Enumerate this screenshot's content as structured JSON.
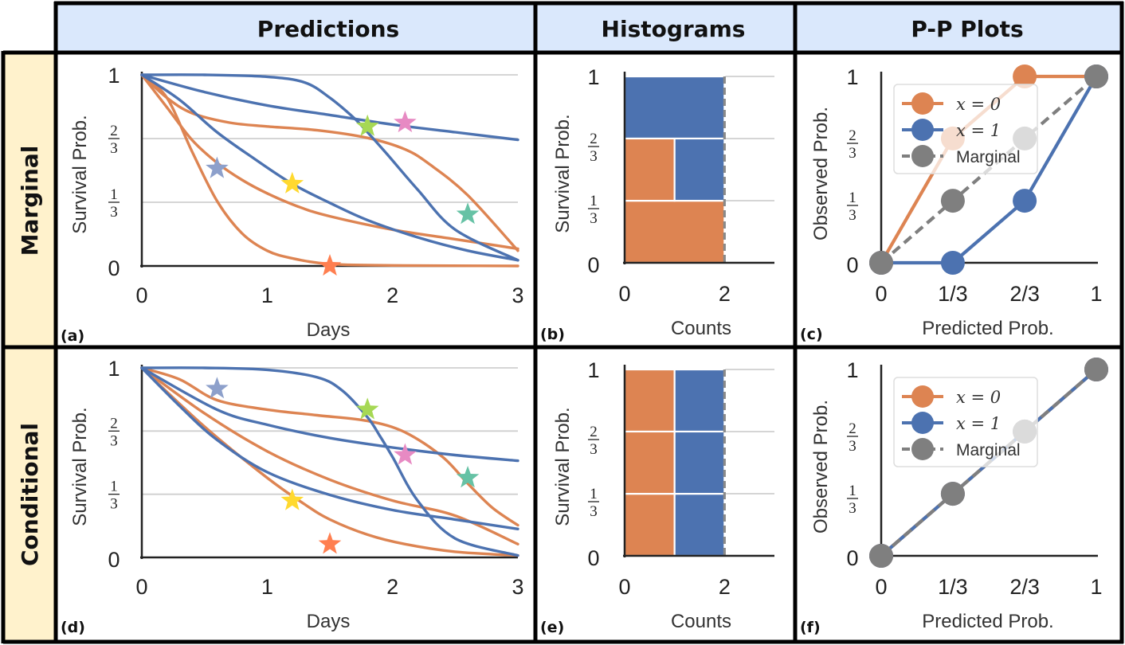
{
  "headers": {
    "predictions": "Predictions",
    "histograms": "Histograms",
    "pp": "P-P Plots"
  },
  "rows": {
    "marginal": "Marginal",
    "conditional": "Conditional"
  },
  "panel_labels": [
    "(a)",
    "(b)",
    "(c)",
    "(d)",
    "(e)",
    "(f)"
  ],
  "colors": {
    "orange": "#DD8452",
    "blue": "#4C72B0",
    "gray": "#7f7f7f",
    "header_bg": "#DAE8FC",
    "row_bg": "#FFF2CC"
  },
  "axis_text": {
    "ylabel_survival": "Survival Prob.",
    "xlabel_days": "Days",
    "xlabel_counts": "Counts",
    "ylabel_observed": "Observed Prob.",
    "xlabel_predicted": "Predicted Prob.",
    "y_one": "1",
    "y_zero": "0",
    "third_num": "1",
    "two_num": "2",
    "third_den": "3"
  },
  "legend": {
    "x0": "x = 0",
    "x1": "x = 1",
    "marginal": "Marginal"
  },
  "chart_data": [
    {
      "type": "line",
      "id": "a",
      "title": "Predictions",
      "row": "Marginal",
      "xlabel": "Days",
      "ylabel": "Survival Prob.",
      "xlim": [
        0,
        3
      ],
      "ylim": [
        0,
        1
      ],
      "x_ticks": [
        "0",
        "1",
        "2",
        "3"
      ],
      "series": [
        {
          "color": "orange",
          "x": [
            0,
            0.2,
            0.4,
            0.6,
            0.8,
            1.0,
            1.2,
            1.5,
            2.0,
            3.0
          ],
          "y": [
            1,
            0.88,
            0.6,
            0.34,
            0.17,
            0.08,
            0.04,
            0.01,
            0.003,
            0
          ]
        },
        {
          "color": "orange",
          "x": [
            0,
            0.2,
            0.4,
            0.6,
            0.8,
            1.0,
            1.25,
            1.5,
            2.0,
            2.5,
            3.0
          ],
          "y": [
            1,
            0.83,
            0.66,
            0.54,
            0.45,
            0.38,
            0.31,
            0.26,
            0.19,
            0.14,
            0.09
          ]
        },
        {
          "color": "orange",
          "x": [
            0,
            0.2,
            0.4,
            0.7,
            1.0,
            1.4,
            1.8,
            2.1,
            2.3,
            2.6,
            3.0
          ],
          "y": [
            1,
            0.88,
            0.8,
            0.75,
            0.73,
            0.71,
            0.67,
            0.61,
            0.53,
            0.37,
            0.08
          ]
        },
        {
          "color": "blue",
          "x": [
            0,
            0.3,
            0.6,
            0.9,
            1.2,
            1.5,
            1.8,
            2.2,
            2.6,
            3.0
          ],
          "y": [
            1,
            0.87,
            0.7,
            0.56,
            0.43,
            0.33,
            0.24,
            0.15,
            0.08,
            0.03
          ]
        },
        {
          "color": "blue",
          "x": [
            0,
            0.5,
            1.0,
            1.3,
            1.5,
            1.7,
            1.8,
            1.95,
            2.2,
            2.5,
            3.0
          ],
          "y": [
            1,
            1.0,
            0.99,
            0.96,
            0.88,
            0.77,
            0.7,
            0.59,
            0.4,
            0.19,
            0.03
          ]
        },
        {
          "color": "blue",
          "x": [
            0,
            0.5,
            1.0,
            1.5,
            2.0,
            2.5,
            3.0
          ],
          "y": [
            1,
            0.91,
            0.84,
            0.79,
            0.74,
            0.7,
            0.66
          ]
        }
      ],
      "stars": [
        {
          "color": "#8DA0CB",
          "x": 0.6,
          "y": 0.51
        },
        {
          "color": "#FFD92F",
          "x": 1.2,
          "y": 0.43
        },
        {
          "color": "#FF7F50",
          "x": 1.5,
          "y": 0.0
        },
        {
          "color": "#A6D854",
          "x": 1.8,
          "y": 0.73
        },
        {
          "color": "#E78AC3",
          "x": 2.1,
          "y": 0.75
        },
        {
          "color": "#66C2A5",
          "x": 2.6,
          "y": 0.27
        }
      ]
    },
    {
      "type": "bar",
      "id": "b",
      "title": "Histograms",
      "row": "Marginal",
      "orientation": "horizontal",
      "xlabel": "Counts",
      "ylabel": "Survival Prob.",
      "xlim": [
        0,
        3
      ],
      "x_ticks": [
        "0",
        "2"
      ],
      "bins": [
        [
          0,
          0.333
        ],
        [
          0.333,
          0.667
        ],
        [
          0.667,
          1
        ]
      ],
      "series": [
        {
          "name": "x = 0",
          "color": "orange",
          "values": [
            2,
            1,
            0
          ]
        },
        {
          "name": "x = 1",
          "color": "blue",
          "values": [
            0,
            1,
            2
          ]
        }
      ],
      "expected_line": 2
    },
    {
      "type": "line",
      "id": "c",
      "title": "P-P Plots",
      "row": "Marginal",
      "xlabel": "Predicted Prob.",
      "ylabel": "Observed Prob.",
      "xlim": [
        0,
        1
      ],
      "ylim": [
        0,
        1
      ],
      "x_ticks": [
        "0",
        "1/3",
        "2/3",
        "1"
      ],
      "series": [
        {
          "name": "x = 0",
          "color": "orange",
          "x": [
            0,
            0.333,
            0.667,
            1
          ],
          "y": [
            0,
            0.667,
            1,
            1
          ]
        },
        {
          "name": "x = 1",
          "color": "blue",
          "x": [
            0,
            0.333,
            0.667,
            1
          ],
          "y": [
            0,
            0,
            0.333,
            1
          ]
        },
        {
          "name": "Marginal",
          "color": "gray",
          "dashed": true,
          "x": [
            0,
            0.333,
            0.667,
            1
          ],
          "y": [
            0,
            0.333,
            0.667,
            1
          ]
        }
      ],
      "legend_loc": "upper left"
    },
    {
      "type": "line",
      "id": "d",
      "title": "Predictions",
      "row": "Conditional",
      "xlabel": "Days",
      "ylabel": "Survival Prob.",
      "xlim": [
        0,
        3
      ],
      "ylim": [
        0,
        1
      ],
      "x_ticks": [
        "0",
        "1",
        "2",
        "3"
      ],
      "series": [
        {
          "color": "orange",
          "x": [
            0,
            0.5,
            1.0,
            1.3,
            1.5,
            1.8,
            2.1,
            2.5,
            3.0
          ],
          "y": [
            1,
            0.69,
            0.42,
            0.28,
            0.2,
            0.12,
            0.07,
            0.03,
            0.01
          ]
        },
        {
          "color": "orange",
          "x": [
            0,
            0.5,
            1.0,
            1.5,
            2.0,
            2.5,
            3.0
          ],
          "y": [
            1,
            0.76,
            0.56,
            0.41,
            0.3,
            0.22,
            0.07
          ]
        },
        {
          "color": "orange",
          "x": [
            0,
            0.3,
            0.6,
            1.0,
            1.4,
            1.8,
            2.1,
            2.4,
            2.6,
            2.8,
            3.0
          ],
          "y": [
            1,
            0.94,
            0.83,
            0.78,
            0.75,
            0.72,
            0.66,
            0.53,
            0.39,
            0.26,
            0.17
          ]
        },
        {
          "color": "blue",
          "x": [
            0,
            0.3,
            0.6,
            1.0,
            1.5,
            2.0,
            2.5,
            3.0
          ],
          "y": [
            1,
            0.8,
            0.62,
            0.45,
            0.33,
            0.25,
            0.2,
            0.15
          ]
        },
        {
          "color": "blue",
          "x": [
            0,
            0.6,
            1.0,
            1.5,
            2.0,
            2.5,
            3.0
          ],
          "y": [
            1,
            0.78,
            0.7,
            0.63,
            0.58,
            0.54,
            0.51
          ]
        },
        {
          "color": "blue",
          "x": [
            0,
            0.5,
            1.0,
            1.4,
            1.6,
            1.8,
            1.9,
            2.0,
            2.2,
            2.5,
            3.0
          ],
          "y": [
            1,
            1.0,
            0.99,
            0.95,
            0.88,
            0.74,
            0.64,
            0.53,
            0.3,
            0.1,
            0.01
          ]
        }
      ],
      "stars": [
        {
          "color": "#8DA0CB",
          "x": 0.6,
          "y": 0.89
        },
        {
          "color": "#FFD92F",
          "x": 1.2,
          "y": 0.3
        },
        {
          "color": "#FF7F50",
          "x": 1.5,
          "y": 0.07
        },
        {
          "color": "#A6D854",
          "x": 1.8,
          "y": 0.78
        },
        {
          "color": "#E78AC3",
          "x": 2.1,
          "y": 0.54
        },
        {
          "color": "#66C2A5",
          "x": 2.6,
          "y": 0.42
        }
      ]
    },
    {
      "type": "bar",
      "id": "e",
      "title": "Histograms",
      "row": "Conditional",
      "orientation": "horizontal",
      "xlabel": "Counts",
      "ylabel": "Survival Prob.",
      "xlim": [
        0,
        3
      ],
      "x_ticks": [
        "0",
        "2"
      ],
      "bins": [
        [
          0,
          0.333
        ],
        [
          0.333,
          0.667
        ],
        [
          0.667,
          1
        ]
      ],
      "series": [
        {
          "name": "x = 0",
          "color": "orange",
          "values": [
            1,
            1,
            1
          ]
        },
        {
          "name": "x = 1",
          "color": "blue",
          "values": [
            1,
            1,
            1
          ]
        }
      ],
      "expected_line": 2
    },
    {
      "type": "line",
      "id": "f",
      "title": "P-P Plots",
      "row": "Conditional",
      "xlabel": "Predicted Prob.",
      "ylabel": "Observed Prob.",
      "xlim": [
        0,
        1
      ],
      "ylim": [
        0,
        1
      ],
      "x_ticks": [
        "0",
        "1/3",
        "2/3",
        "1"
      ],
      "series": [
        {
          "name": "x = 0",
          "color": "orange",
          "x": [
            0,
            0.333,
            0.667,
            1
          ],
          "y": [
            0,
            0.333,
            0.667,
            1
          ]
        },
        {
          "name": "x = 1",
          "color": "blue",
          "x": [
            0,
            0.333,
            0.667,
            1
          ],
          "y": [
            0,
            0.333,
            0.667,
            1
          ]
        },
        {
          "name": "Marginal",
          "color": "gray",
          "dashed": true,
          "x": [
            0,
            0.333,
            0.667,
            1
          ],
          "y": [
            0,
            0.333,
            0.667,
            1
          ]
        }
      ],
      "legend_loc": "upper left"
    }
  ]
}
